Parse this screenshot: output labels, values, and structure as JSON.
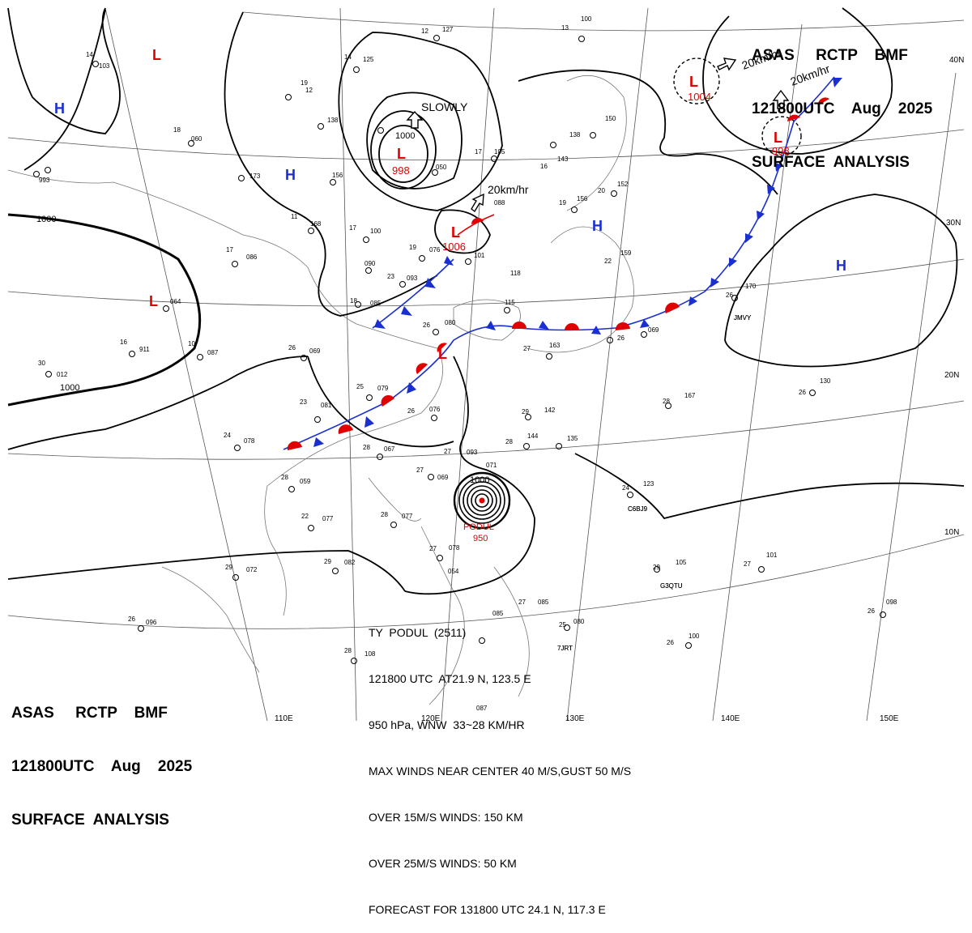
{
  "header": {
    "line1": "ASAS     RCTP    BMF",
    "line2": "121800UTC    Aug    2025",
    "line3": "SURFACE  ANALYSIS"
  },
  "typhoon_box": {
    "line1": "TY  PODUL  (2511)",
    "line2": "121800 UTC  AT21.9 N, 123.5 E",
    "line3": "950 hPa, WNW  33~28 KM/HR",
    "line4": "MAX WINDS NEAR CENTER 40 M/S,GUST 50 M/S",
    "line5": "OVER 15M/S WINDS: 150 KM",
    "line6": "OVER 25M/S WINDS: 50 KM",
    "line7": "FORECAST FOR 131800 UTC 24.1 N, 117.3 E"
  },
  "pressure_systems": {
    "low_symbol": "L",
    "high_symbol": "H",
    "low_998": "998",
    "low_1006": "1006",
    "low_1004": "1004",
    "low_998_ne": "998",
    "typhoon_name": "PODUL",
    "typhoon_pressure": "950"
  },
  "motion_labels": {
    "slowly": "SLOWLY",
    "speed_20a": "20km/hr",
    "speed_20b": "20km/hr",
    "speed_20c": "20km/hr"
  },
  "isobar_labels": {
    "i1000_west": "1000",
    "i1000_sw": "1000",
    "i1000_center": "1000",
    "i1000_ty": "1000"
  },
  "latitude_labels": [
    "40N",
    "30N",
    "20N",
    "10N"
  ],
  "longitude_labels": [
    "110E",
    "120E",
    "130E",
    "140E",
    "150E"
  ],
  "station_codes": [
    "JMVY",
    "C6BJ9",
    "G3QTU",
    "7JRT"
  ],
  "colors": {
    "warm_front": "#e00000",
    "cold_front": "#1a2fd0",
    "low": "#e00000",
    "high": "#1a2fd0",
    "isobar": "#000000"
  }
}
